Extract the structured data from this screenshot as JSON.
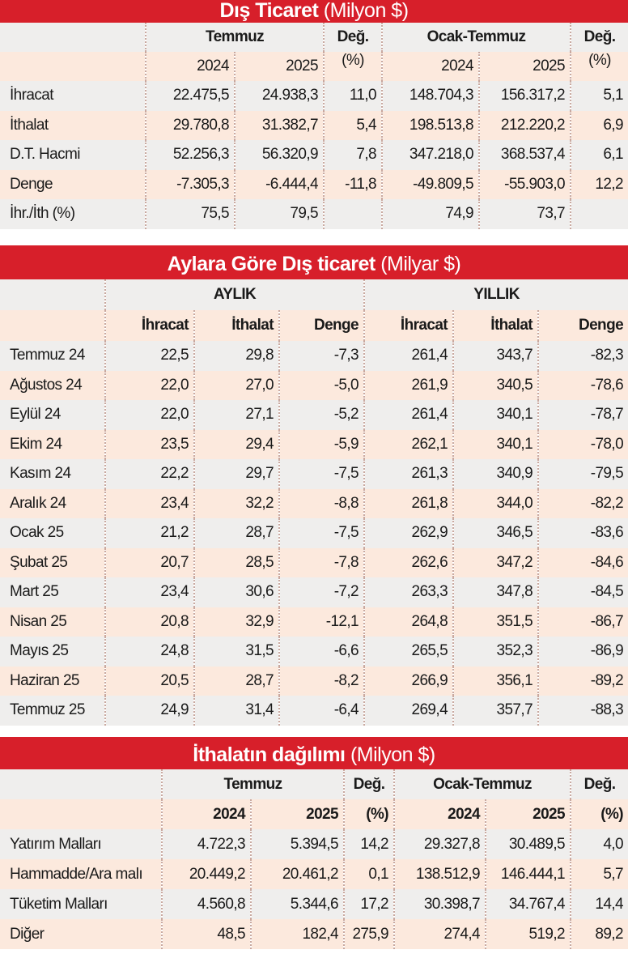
{
  "tables": [
    {
      "title": "Dış Ticaret",
      "unit": "(Milyon $)",
      "group_headers": [
        "Temmuz",
        "Değ.",
        "Ocak-Temmuz",
        "Değ."
      ],
      "sub_headers": [
        "2024",
        "2025",
        "(%)",
        "2024",
        "2025",
        "(%)"
      ],
      "rows": [
        {
          "label": "İhracat",
          "values": [
            "22.475,5",
            "24.938,3",
            "11,0",
            "148.704,3",
            "156.317,2",
            "5,1"
          ]
        },
        {
          "label": "İthalat",
          "values": [
            "29.780,8",
            "31.382,7",
            "5,4",
            "198.513,8",
            "212.220,2",
            "6,9"
          ]
        },
        {
          "label": "D.T. Hacmi",
          "values": [
            "52.256,3",
            "56.320,9",
            "7,8",
            "347.218,0",
            "368.537,4",
            "6,1"
          ]
        },
        {
          "label": "Denge",
          "values": [
            "-7.305,3",
            "-6.444,4",
            "-11,8",
            "-49.809,5",
            "-55.903,0",
            "12,2"
          ]
        },
        {
          "label": "İhr./İth (%)",
          "values": [
            "75,5",
            "79,5",
            null,
            "74,9",
            "73,7",
            null
          ]
        }
      ]
    },
    {
      "title": "Aylara Göre Dış ticaret",
      "unit": "(Milyar $)",
      "group_headers": [
        "AYLIK",
        "YILLIK"
      ],
      "sub_headers": [
        "İhracat",
        "İthalat",
        "Denge",
        "İhracat",
        "İthalat",
        "Denge"
      ],
      "rows": [
        {
          "label": "Temmuz 24",
          "values": [
            "22,5",
            "29,8",
            "-7,3",
            "261,4",
            "343,7",
            "-82,3"
          ]
        },
        {
          "label": "Ağustos 24",
          "values": [
            "22,0",
            "27,0",
            "-5,0",
            "261,9",
            "340,5",
            "-78,6"
          ]
        },
        {
          "label": "Eylül 24",
          "values": [
            "22,0",
            "27,1",
            "-5,2",
            "261,4",
            "340,1",
            "-78,7"
          ]
        },
        {
          "label": "Ekim 24",
          "values": [
            "23,5",
            "29,4",
            "-5,9",
            "262,1",
            "340,1",
            "-78,0"
          ]
        },
        {
          "label": "Kasım 24",
          "values": [
            "22,2",
            "29,7",
            "-7,5",
            "261,3",
            "340,9",
            "-79,5"
          ]
        },
        {
          "label": "Aralık 24",
          "values": [
            "23,4",
            "32,2",
            "-8,8",
            "261,8",
            "344,0",
            "-82,2"
          ]
        },
        {
          "label": "Ocak 25",
          "values": [
            "21,2",
            "28,7",
            "-7,5",
            "262,9",
            "346,5",
            "-83,6"
          ]
        },
        {
          "label": "Şubat 25",
          "values": [
            "20,7",
            "28,5",
            "-7,8",
            "262,6",
            "347,2",
            "-84,6"
          ]
        },
        {
          "label": "Mart 25",
          "values": [
            "23,4",
            "30,6",
            "-7,2",
            "263,3",
            "347,8",
            "-84,5"
          ]
        },
        {
          "label": "Nisan 25",
          "values": [
            "20,8",
            "32,9",
            "-12,1",
            "264,8",
            "351,5",
            "-86,7"
          ]
        },
        {
          "label": "Mayıs 25",
          "values": [
            "24,8",
            "31,5",
            "-6,6",
            "265,5",
            "352,3",
            "-86,9"
          ]
        },
        {
          "label": "Haziran 25",
          "values": [
            "20,5",
            "28,7",
            "-8,2",
            "266,9",
            "356,1",
            "-89,2"
          ]
        },
        {
          "label": "Temmuz 25",
          "values": [
            "24,9",
            "31,4",
            "-6,4",
            "269,4",
            "357,7",
            "-88,3"
          ]
        }
      ]
    },
    {
      "title": "İthalatın dağılımı",
      "unit": "(Milyon $)",
      "group_headers": [
        "Temmuz",
        "Değ.",
        "Ocak-Temmuz",
        "Değ."
      ],
      "sub_headers": [
        "2024",
        "2025",
        "(%)",
        "2024",
        "2025",
        "(%)"
      ],
      "rows": [
        {
          "label": "Yatırım Malları",
          "values": [
            "4.722,3",
            "5.394,5",
            "14,2",
            "29.327,8",
            "30.489,5",
            "4,0"
          ]
        },
        {
          "label": "Hammadde/Ara malı",
          "values": [
            "20.449,2",
            "20.461,2",
            "0,1",
            "138.512,9",
            "146.444,1",
            "5,7"
          ]
        },
        {
          "label": "Tüketim Malları",
          "values": [
            "4.560,8",
            "5.344,6",
            "17,2",
            "30.398,7",
            "34.767,4",
            "14,4"
          ]
        },
        {
          "label": "Diğer",
          "values": [
            "48,5",
            "182,4",
            "275,9",
            "274,4",
            "519,2",
            "89,2"
          ]
        }
      ]
    }
  ]
}
